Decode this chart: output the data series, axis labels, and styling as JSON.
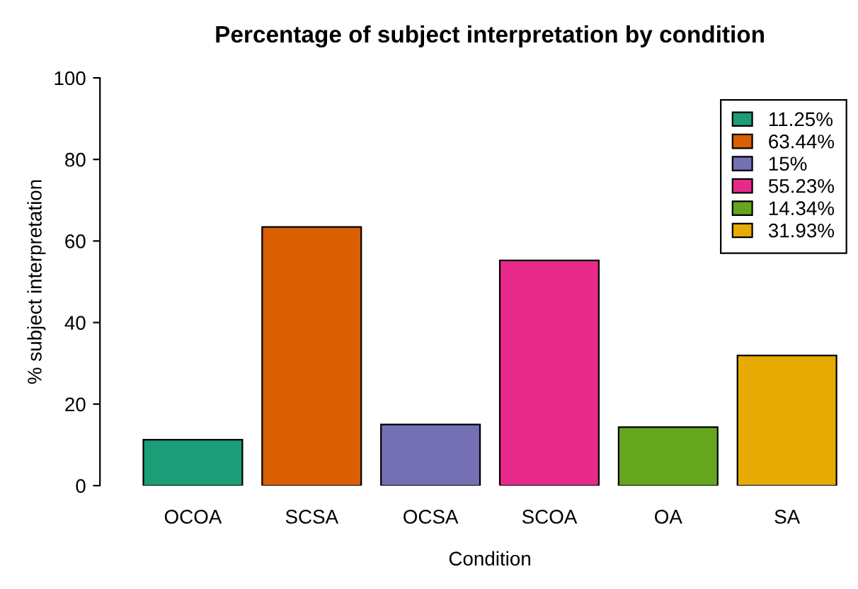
{
  "chart_data": {
    "type": "bar",
    "title": "Percentage of subject interpretation by condition",
    "xlabel": "Condition",
    "ylabel": "% subject interpretation",
    "categories": [
      "OCOA",
      "SCSA",
      "OCSA",
      "SCOA",
      "OA",
      "SA"
    ],
    "series": [
      {
        "name": "11.25%",
        "color": "#1b9e77",
        "values": [
          11.25,
          null,
          null,
          null,
          null,
          null
        ]
      },
      {
        "name": "63.44%",
        "color": "#d95f02",
        "values": [
          null,
          63.44,
          null,
          null,
          null,
          null
        ]
      },
      {
        "name": "15%",
        "color": "#7570b3",
        "values": [
          null,
          null,
          15,
          null,
          null,
          null
        ]
      },
      {
        "name": "55.23%",
        "color": "#e7298a",
        "values": [
          null,
          null,
          null,
          55.23,
          null,
          null
        ]
      },
      {
        "name": "14.34%",
        "color": "#66a61e",
        "values": [
          null,
          null,
          null,
          null,
          14.34,
          null
        ]
      },
      {
        "name": "31.93%",
        "color": "#e6ab02",
        "values": [
          null,
          null,
          null,
          null,
          null,
          31.93
        ]
      }
    ],
    "ylim": [
      0,
      100
    ],
    "yticks": [
      0,
      20,
      40,
      60,
      80,
      100
    ],
    "grid": false,
    "legend": "top right"
  }
}
